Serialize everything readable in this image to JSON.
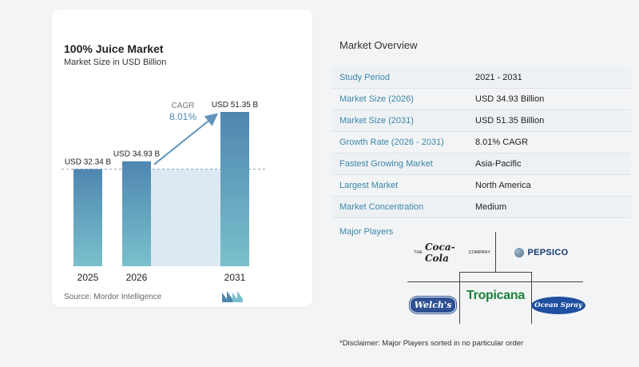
{
  "chart": {
    "title": "100% Juice Market",
    "subtitle": "Market Size in USD Billion",
    "source": "Source:  Mordor Intelligence",
    "cagr_label": "CAGR",
    "cagr_value": "8.01%",
    "colors": {
      "bar_top": "#4f86b0",
      "bar_bottom": "#7ac0cc",
      "shade": "#dde9f2",
      "arrow": "#5f95bf"
    }
  },
  "chart_data": {
    "type": "bar",
    "categories": [
      "2025",
      "2026",
      "2031"
    ],
    "values": [
      32.34,
      34.93,
      51.35
    ],
    "data_labels": [
      "USD 32.34 B",
      "USD 34.93 B",
      "USD 51.35 B"
    ],
    "title": "100% Juice Market",
    "subtitle": "Market Size in USD Billion",
    "ylim": [
      0,
      51.35
    ],
    "grid": false,
    "legend": "none"
  },
  "overview": {
    "title": "Market Overview",
    "rows": [
      {
        "label": "Study Period",
        "value": "2021 - 2031"
      },
      {
        "label": "Market Size (2026)",
        "value": "USD 34.93 Billion"
      },
      {
        "label": "Market Size (2031)",
        "value": "USD 51.35 Billion"
      },
      {
        "label": "Growth Rate (2026 - 2031)",
        "value": "8.01% CAGR"
      },
      {
        "label": "Fastest Growing Market",
        "value": "Asia-Pacific"
      },
      {
        "label": "Largest Market",
        "value": "North America"
      },
      {
        "label": "Market Concentration",
        "value": "Medium"
      }
    ]
  },
  "players": {
    "label": "Major Players",
    "logos": {
      "cocacola": {
        "prefix": "THE",
        "name": "Coca-Cola",
        "suffix": "COMPANY"
      },
      "pepsico": {
        "name": "PEPSICO"
      },
      "welchs": {
        "name": "Welch's"
      },
      "tropicana": {
        "name": "Tropicana"
      },
      "oceanspray": {
        "name": "Ocean Spray"
      }
    }
  },
  "disclaimer": "*Disclaimer: Major Players sorted in no particular order"
}
